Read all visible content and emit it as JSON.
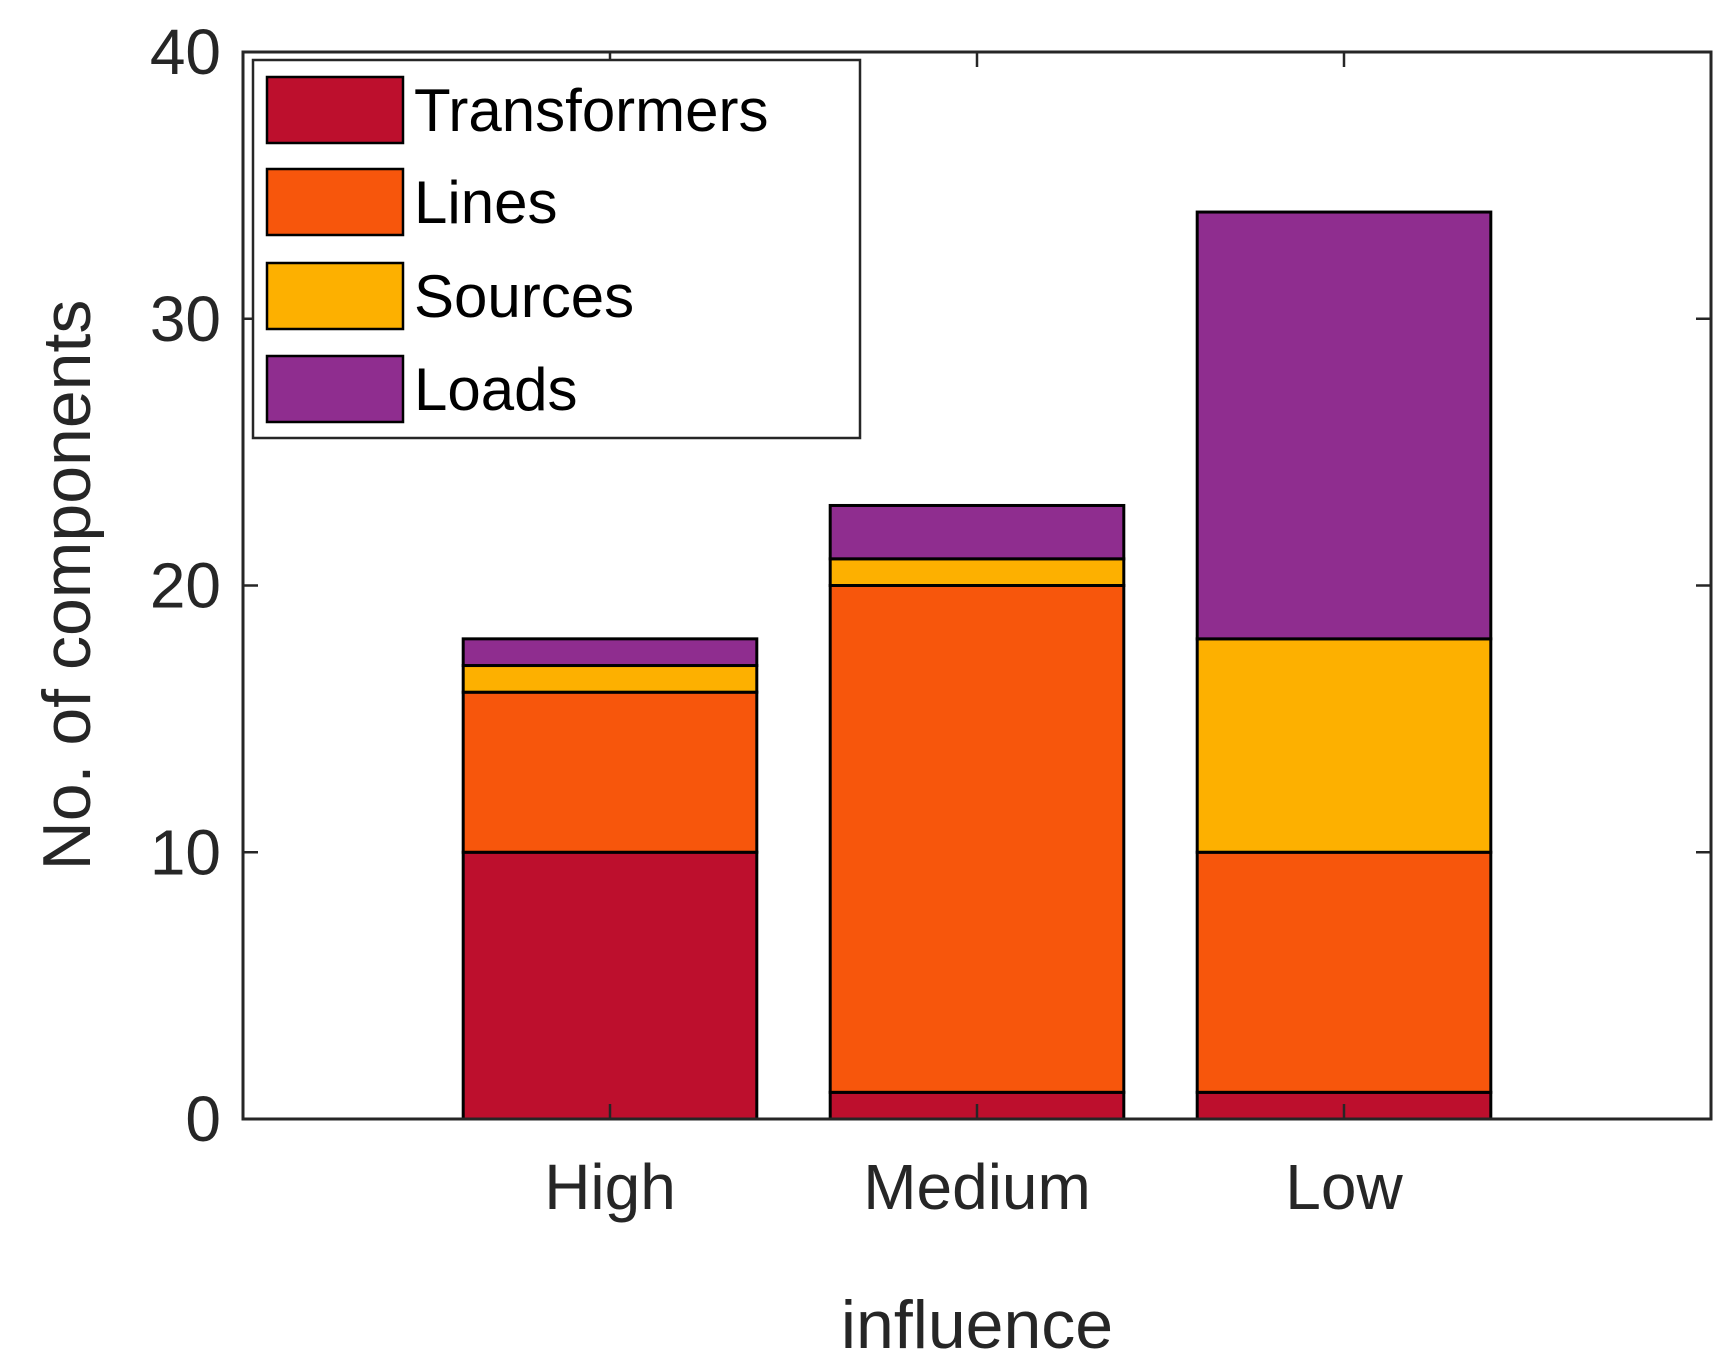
{
  "chart_data": {
    "type": "bar",
    "stacked": true,
    "categories": [
      "High",
      "Medium",
      "Low"
    ],
    "series": [
      {
        "name": "Transformers",
        "values": [
          10,
          1,
          1
        ],
        "color": "#BD0F2D"
      },
      {
        "name": "Lines",
        "values": [
          6,
          19,
          9
        ],
        "color": "#F7560C"
      },
      {
        "name": "Sources",
        "values": [
          1,
          1,
          8
        ],
        "color": "#FDB000"
      },
      {
        "name": "Loads",
        "values": [
          1,
          2,
          16
        ],
        "color": "#8F2D8F"
      }
    ],
    "title": "",
    "xlabel": "influence",
    "ylabel": "No. of components",
    "ylim": [
      0,
      40
    ],
    "yticks": [
      "0",
      "10",
      "20",
      "30",
      "40"
    ],
    "grid": false,
    "legend_location": "top-left"
  }
}
